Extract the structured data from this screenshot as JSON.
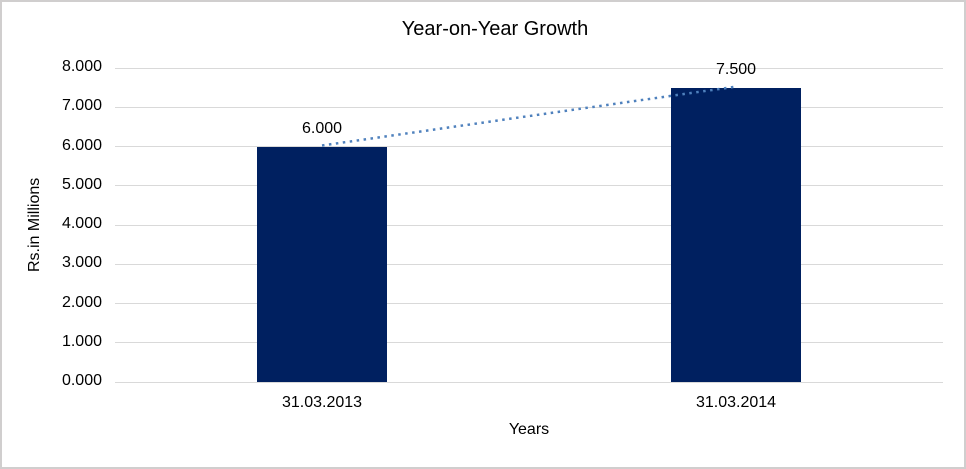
{
  "frame": {
    "background": "#ffffff",
    "border_color": "#d0cece"
  },
  "chart_data": {
    "type": "bar",
    "title": "Year-on-Year Growth",
    "xlabel": "Years",
    "ylabel": "Rs.in Millions",
    "categories": [
      "31.03.2013",
      "31.03.2014"
    ],
    "values": [
      6.0,
      7.5
    ],
    "value_labels": [
      "6.000",
      "7.500"
    ],
    "ylim": [
      0,
      8
    ],
    "ytick_interval": 1,
    "ytick_labels": [
      "0.000",
      "1.000",
      "2.000",
      "3.000",
      "4.000",
      "5.000",
      "6.000",
      "7.000",
      "8.000"
    ],
    "grid": true,
    "legend_position": "none",
    "bar_color": "#002060",
    "gridline_color": "#d9d9d9",
    "text_color": "#000000",
    "trendline": {
      "type": "linear",
      "style": "dotted",
      "color": "#4f81bd"
    }
  }
}
